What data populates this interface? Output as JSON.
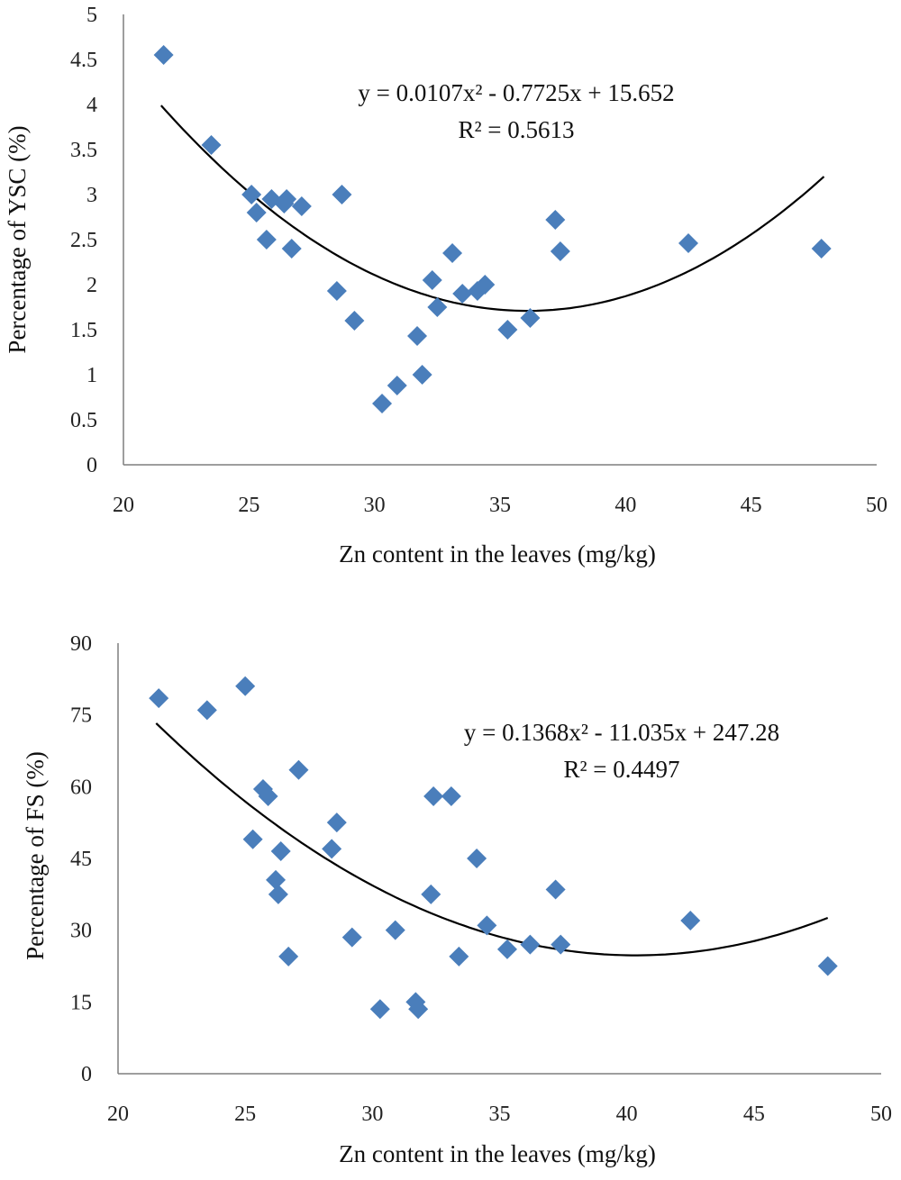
{
  "colors": {
    "marker": "#4a7ebb",
    "trend": "#000000",
    "axis": "#7f7f7f"
  },
  "chart_data": [
    {
      "type": "scatter",
      "id": "ysc",
      "title": "",
      "xlabel": "Zn content in the leaves (mg/kg)",
      "ylabel": "Percentage of YSC (%)",
      "xlim": [
        20,
        50
      ],
      "ylim": [
        0,
        5
      ],
      "xticks": [
        "20",
        "25",
        "30",
        "35",
        "40",
        "45",
        "50"
      ],
      "yticks": [
        "0",
        "0.5",
        "1",
        "1.5",
        "2",
        "2.5",
        "3",
        "3.5",
        "4",
        "4.5",
        "5"
      ],
      "grid": false,
      "equation": "y = 0.0107x² - 0.7725x + 15.652",
      "r_squared": "R² = 0.5613",
      "trendline": {
        "type": "polynomial",
        "a": 0.0107,
        "b": -0.7725,
        "c": 15.652,
        "x_range": [
          21.5,
          47.9
        ]
      },
      "series": [
        {
          "name": "YSC",
          "x": [
            21.6,
            23.5,
            25.1,
            25.3,
            25.7,
            25.9,
            26.4,
            26.5,
            26.7,
            27.1,
            28.5,
            28.7,
            29.2,
            30.3,
            30.9,
            31.7,
            31.9,
            32.3,
            32.5,
            33.1,
            33.5,
            34.1,
            34.4,
            35.3,
            36.2,
            37.2,
            37.4,
            42.5,
            47.8
          ],
          "y": [
            4.55,
            3.55,
            3.0,
            2.8,
            2.5,
            2.95,
            2.9,
            2.95,
            2.4,
            2.87,
            1.93,
            3.0,
            1.6,
            0.68,
            0.88,
            1.43,
            1.0,
            2.05,
            1.75,
            2.35,
            1.9,
            1.93,
            2.0,
            1.5,
            1.63,
            2.72,
            2.37,
            2.46,
            2.4
          ]
        }
      ]
    },
    {
      "type": "scatter",
      "id": "fs",
      "title": "",
      "xlabel": "Zn content in the leaves (mg/kg)",
      "ylabel": "Percentage of FS (%)",
      "xlim": [
        20,
        50
      ],
      "ylim": [
        0,
        90
      ],
      "xticks": [
        "20",
        "25",
        "30",
        "35",
        "40",
        "45",
        "50"
      ],
      "yticks": [
        "0",
        "15",
        "30",
        "45",
        "60",
        "75",
        "90"
      ],
      "grid": false,
      "equation": "y = 0.1368x² - 11.035x + 247.28",
      "r_squared": "R² = 0.4497",
      "trendline": {
        "type": "polynomial",
        "a": 0.1368,
        "b": -11.035,
        "c": 247.28,
        "x_range": [
          21.5,
          47.9
        ]
      },
      "series": [
        {
          "name": "FS",
          "x": [
            21.6,
            23.5,
            25.0,
            25.3,
            25.7,
            25.9,
            26.2,
            26.3,
            26.4,
            26.7,
            27.1,
            28.4,
            28.6,
            29.2,
            30.3,
            30.9,
            31.7,
            31.8,
            32.3,
            32.4,
            33.1,
            33.4,
            34.1,
            34.5,
            35.3,
            36.2,
            37.2,
            37.4,
            42.5,
            47.9
          ],
          "y": [
            78.5,
            76,
            81,
            49,
            59.5,
            58,
            40.5,
            37.5,
            46.5,
            24.5,
            63.5,
            47,
            52.5,
            28.5,
            13.5,
            30,
            15,
            13.5,
            37.5,
            58,
            58,
            24.5,
            45,
            31,
            26,
            27,
            38.5,
            27,
            32,
            22.5
          ]
        }
      ]
    }
  ]
}
